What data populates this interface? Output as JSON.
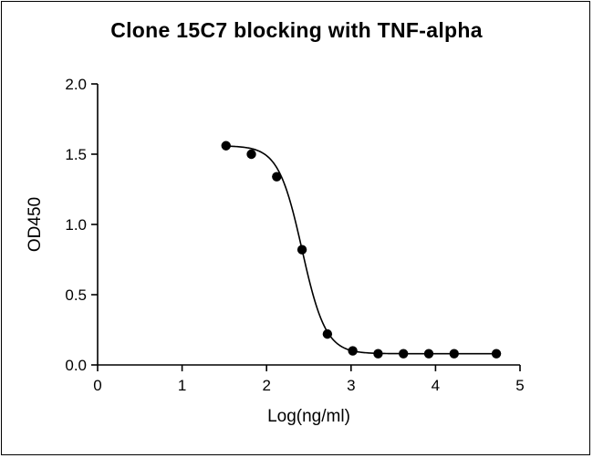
{
  "chart_data": {
    "type": "scatter",
    "title": "Clone 15C7 blocking with TNF-alpha",
    "xlabel": "Log(ng/ml)",
    "ylabel": "OD450",
    "xlim": [
      0,
      5
    ],
    "ylim": [
      0,
      2.0
    ],
    "xticks": [
      "0",
      "1",
      "2",
      "3",
      "4",
      "5"
    ],
    "yticks": [
      "0.0",
      "0.5",
      "1.0",
      "1.5",
      "2.0"
    ],
    "grid": false,
    "fit_curve": "sigmoidal",
    "marker_color": "#000000",
    "series": [
      {
        "x": [
          1.52,
          1.82,
          2.12,
          2.42,
          2.72,
          3.02,
          3.32,
          3.62,
          3.92,
          4.22,
          4.72
        ],
        "y": [
          1.56,
          1.5,
          1.34,
          0.82,
          0.22,
          0.1,
          0.08,
          0.08,
          0.08,
          0.08,
          0.08
        ]
      }
    ]
  }
}
